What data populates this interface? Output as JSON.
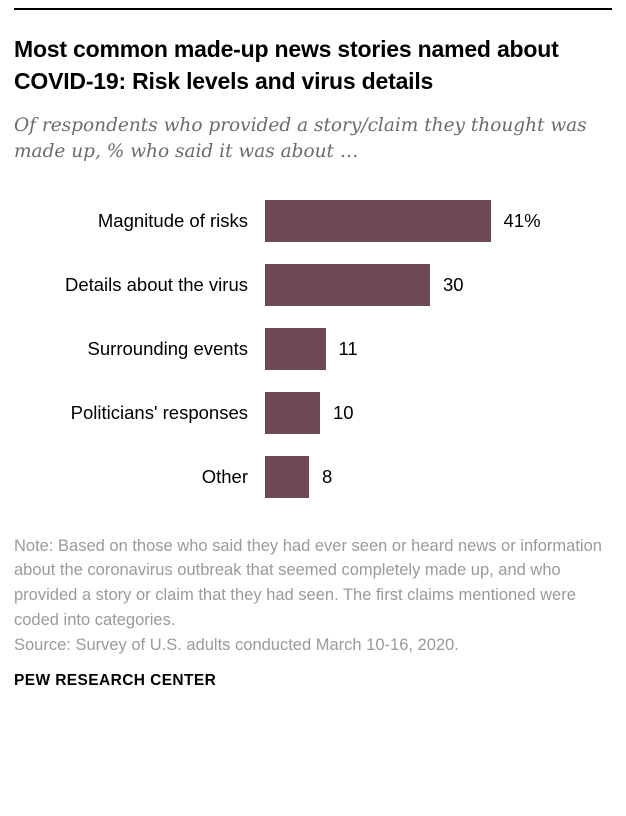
{
  "header": {
    "title": "Most common made-up news stories named about COVID-19: Risk levels and virus details",
    "subtitle": "Of respondents who provided a story/claim they thought was made up, % who said it was about …"
  },
  "chart_data": {
    "type": "bar",
    "orientation": "horizontal",
    "title": "Most common made-up news stories named about COVID-19: Risk levels and virus details",
    "categories": [
      "Magnitude of risks",
      "Details about the virus",
      "Surrounding events",
      "Politicians' responses",
      "Other"
    ],
    "values": [
      41,
      30,
      11,
      10,
      8
    ],
    "value_labels": [
      "41%",
      "30",
      "11",
      "10",
      "8"
    ],
    "bar_color": "#6d4a53",
    "xlim": [
      0,
      45
    ],
    "grid": false,
    "legend": false
  },
  "footer": {
    "note": "Note: Based on those who said they had ever seen or heard news or information about the coronavirus outbreak that seemed completely made up, and who provided a story or claim that they had seen. The first claims mentioned were coded into categories.",
    "source": "Source: Survey of U.S. adults conducted March 10-16, 2020.",
    "brand": "PEW RESEARCH CENTER"
  }
}
